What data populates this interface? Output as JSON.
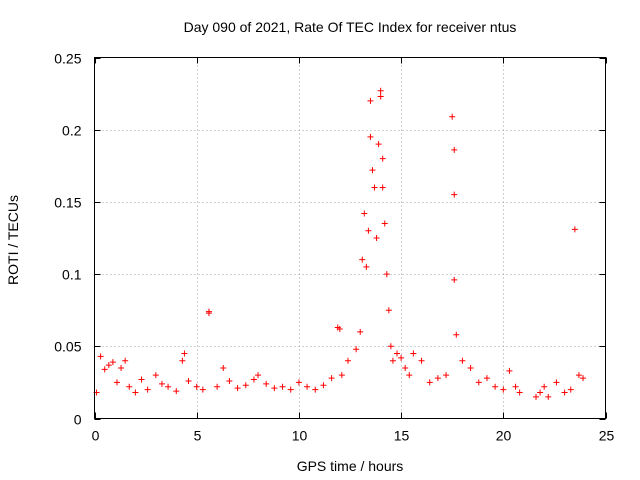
{
  "chart_data": {
    "type": "scatter",
    "title": "Day 090 of 2021, Rate Of TEC Index for receiver ntus",
    "xlabel": "GPS time / hours",
    "ylabel": "ROTI / TECUs",
    "xlim": [
      0,
      25
    ],
    "ylim": [
      0,
      0.25
    ],
    "grid": true,
    "x_ticks": [
      0,
      5,
      10,
      15,
      20,
      25
    ],
    "x_tick_labels": [
      "0",
      "5",
      "10",
      "15",
      "20",
      "25"
    ],
    "y_ticks": [
      0,
      0.05,
      0.1,
      0.15,
      0.2,
      0.25
    ],
    "y_tick_labels": [
      "0",
      "0.05",
      "0.1",
      "0.15",
      "0.2",
      "0.25"
    ],
    "marker": "+",
    "color": "#ff0000",
    "series": [
      {
        "name": "ROTI",
        "x": [
          0.1,
          0.3,
          0.5,
          0.7,
          0.9,
          1.1,
          1.3,
          1.5,
          1.7,
          2.0,
          2.3,
          2.6,
          3.0,
          3.3,
          3.6,
          4.0,
          4.3,
          4.4,
          4.6,
          5.0,
          5.3,
          5.6,
          5.6,
          6.0,
          6.3,
          6.6,
          7.0,
          7.4,
          7.8,
          8.0,
          8.4,
          8.8,
          9.2,
          9.6,
          10.0,
          10.4,
          10.8,
          11.2,
          11.6,
          11.9,
          12.0,
          12.1,
          12.4,
          12.8,
          13.0,
          13.1,
          13.2,
          13.3,
          13.4,
          13.5,
          13.5,
          13.6,
          13.7,
          13.8,
          13.9,
          14.0,
          14.0,
          14.1,
          14.1,
          14.2,
          14.3,
          14.4,
          14.5,
          14.6,
          14.8,
          15.0,
          15.2,
          15.4,
          15.6,
          16.0,
          16.4,
          16.8,
          17.2,
          17.5,
          17.6,
          17.6,
          17.6,
          17.7,
          18.0,
          18.4,
          18.8,
          19.2,
          19.6,
          20.0,
          20.3,
          20.6,
          20.8,
          21.6,
          21.8,
          22.0,
          22.2,
          22.6,
          23.0,
          23.3,
          23.5,
          23.7,
          23.9
        ],
        "y": [
          0.018,
          0.043,
          0.034,
          0.037,
          0.039,
          0.025,
          0.035,
          0.04,
          0.022,
          0.018,
          0.027,
          0.02,
          0.03,
          0.024,
          0.022,
          0.019,
          0.04,
          0.045,
          0.026,
          0.022,
          0.02,
          0.074,
          0.073,
          0.022,
          0.035,
          0.026,
          0.021,
          0.023,
          0.027,
          0.03,
          0.024,
          0.021,
          0.022,
          0.02,
          0.025,
          0.022,
          0.02,
          0.023,
          0.028,
          0.063,
          0.062,
          0.03,
          0.04,
          0.048,
          0.06,
          0.11,
          0.142,
          0.105,
          0.13,
          0.195,
          0.22,
          0.172,
          0.16,
          0.125,
          0.19,
          0.227,
          0.223,
          0.18,
          0.16,
          0.135,
          0.1,
          0.075,
          0.05,
          0.04,
          0.045,
          0.042,
          0.035,
          0.03,
          0.045,
          0.04,
          0.025,
          0.028,
          0.03,
          0.209,
          0.186,
          0.155,
          0.096,
          0.058,
          0.04,
          0.035,
          0.025,
          0.028,
          0.022,
          0.02,
          0.033,
          0.022,
          0.018,
          0.015,
          0.018,
          0.022,
          0.015,
          0.025,
          0.018,
          0.02,
          0.131,
          0.03,
          0.028
        ]
      }
    ]
  }
}
